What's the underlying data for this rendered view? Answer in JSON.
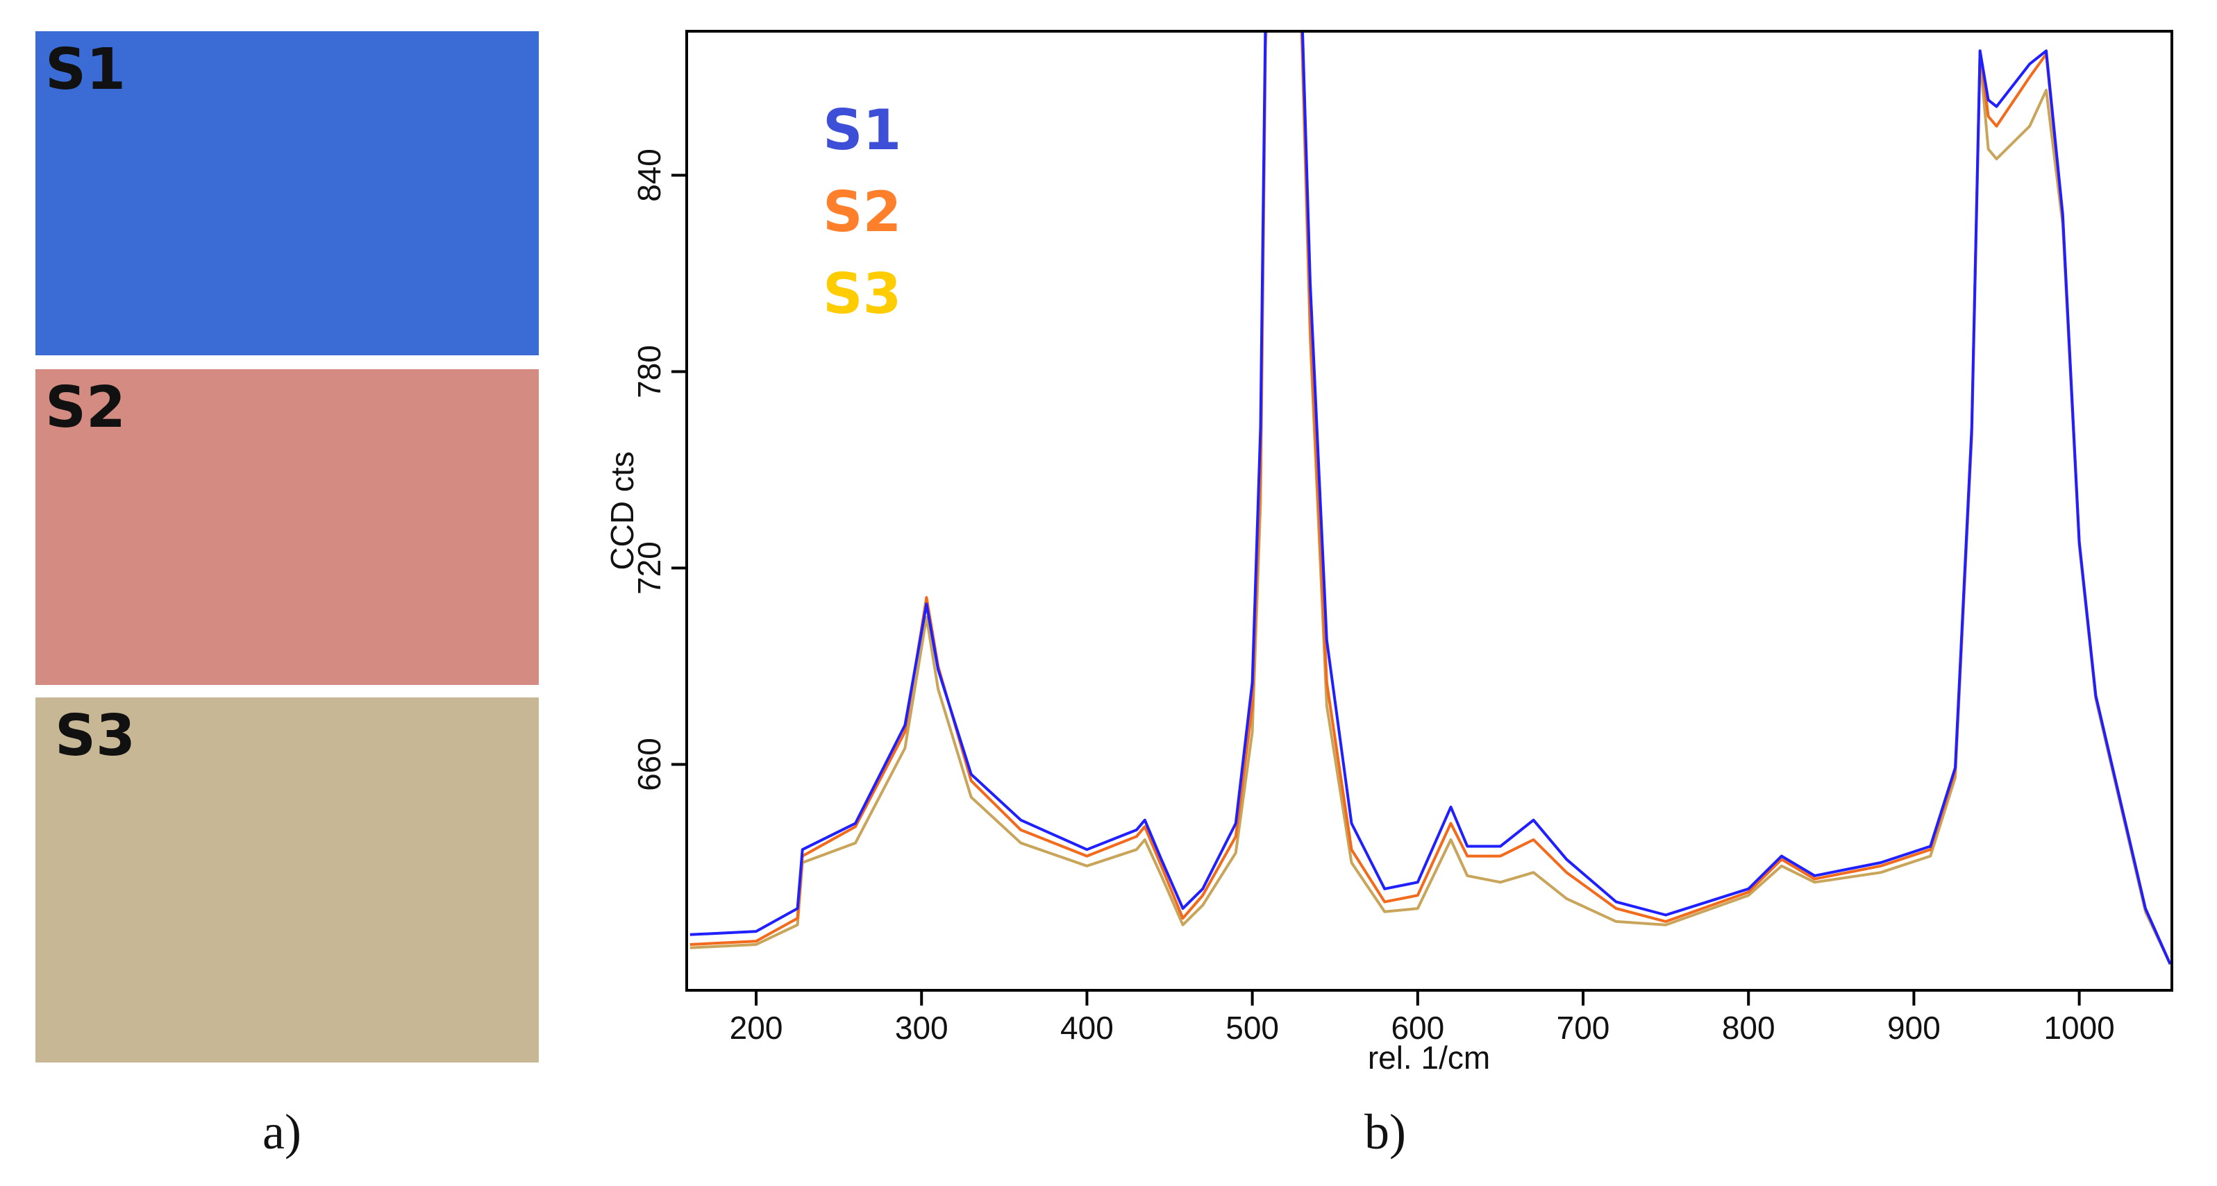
{
  "panel_a": {
    "label": "a)",
    "swatches": [
      {
        "name": "S1",
        "color": "#3b6bd4"
      },
      {
        "name": "S2",
        "color": "#d38b82"
      },
      {
        "name": "S3",
        "color": "#c8b795"
      }
    ]
  },
  "panel_b": {
    "label": "b)"
  },
  "chart_data": {
    "type": "line",
    "title": "",
    "xlabel": "rel. 1/cm",
    "ylabel": "CCD cts",
    "xlim": [
      158,
      1056
    ],
    "ylim": [
      591,
      884
    ],
    "xticks": [
      200,
      300,
      400,
      500,
      600,
      700,
      800,
      900,
      1000
    ],
    "yticks": [
      660,
      720,
      780,
      840
    ],
    "grid": false,
    "legend_position": "top-left",
    "x": [
      160,
      200,
      225,
      228,
      260,
      290,
      303,
      310,
      330,
      360,
      400,
      430,
      435,
      445,
      458,
      470,
      490,
      500,
      505,
      508,
      520,
      530,
      535,
      545,
      560,
      580,
      600,
      620,
      630,
      650,
      670,
      690,
      720,
      750,
      800,
      820,
      840,
      880,
      910,
      925,
      935,
      940,
      945,
      950,
      970,
      980,
      990,
      1000,
      1010,
      1040,
      1055
    ],
    "series": [
      {
        "name": "S1",
        "color": "#2020ff",
        "legend_color": "#3d4fd6",
        "values": [
          608,
          609,
          616,
          634,
          642,
          672,
          709,
          689,
          657,
          643,
          634,
          640,
          643,
          631,
          616,
          622,
          642,
          685,
          763,
          890,
          1000,
          890,
          807,
          698,
          642,
          622,
          624,
          647,
          635,
          635,
          643,
          631,
          618,
          614,
          622,
          632,
          626,
          630,
          635,
          659,
          763,
          878,
          863,
          861,
          874,
          878,
          828,
          728,
          681,
          616,
          599
        ]
      },
      {
        "name": "S2",
        "color": "#f26a1b",
        "legend_color": "#ff7f2a",
        "values": [
          605,
          606,
          613,
          632,
          641,
          670,
          711,
          690,
          655,
          640,
          632,
          638,
          641,
          629,
          613,
          620,
          638,
          678,
          750,
          885,
          1000,
          885,
          795,
          685,
          634,
          618,
          620,
          642,
          632,
          632,
          637,
          627,
          616,
          612,
          621,
          631,
          625,
          629,
          634,
          658,
          762,
          878,
          858,
          855,
          870,
          877,
          827,
          728,
          681,
          616,
          599
        ]
      },
      {
        "name": "S3",
        "color": "#c8a55a",
        "legend_color": "#ffcc00",
        "values": [
          604,
          605,
          611,
          630,
          636,
          665,
          705,
          683,
          650,
          636,
          629,
          634,
          637,
          626,
          611,
          617,
          633,
          670,
          740,
          880,
          1000,
          880,
          790,
          678,
          630,
          615,
          616,
          637,
          626,
          624,
          627,
          619,
          612,
          611,
          620,
          629,
          624,
          627,
          632,
          656,
          760,
          876,
          848,
          845,
          855,
          866,
          825,
          727,
          680,
          615,
          599
        ]
      }
    ]
  }
}
